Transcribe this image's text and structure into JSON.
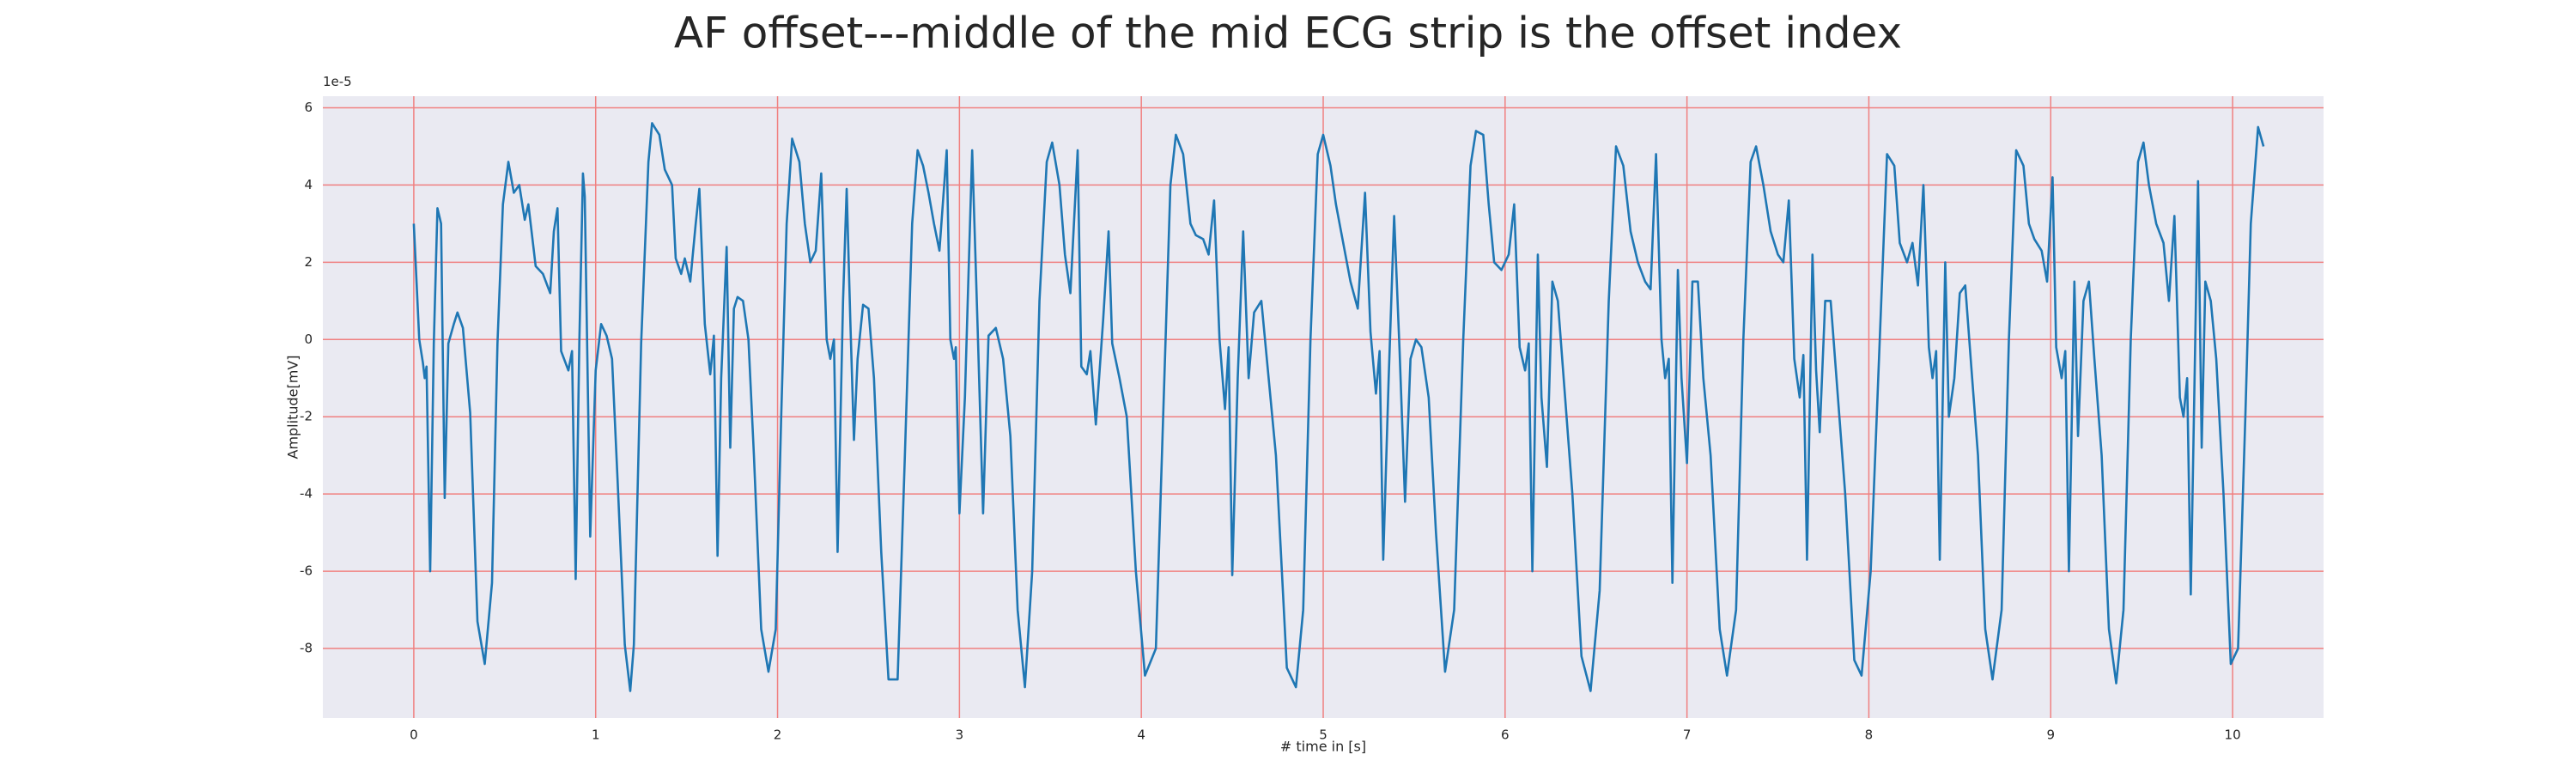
{
  "chart_data": {
    "type": "line",
    "title": "AF offset---middle of the mid ECG strip is the offset index",
    "xlabel": "# time in [s]",
    "ylabel": "Amplitude[mV]",
    "y_offset_text": "1e-5",
    "color": "#1f77b4",
    "background": "#eaeaf2",
    "grid": true,
    "grid_color": "#f08080",
    "xlim": [
      -0.5,
      10.5
    ],
    "ylim": [
      -9.8,
      6.3
    ],
    "xticks": [
      0,
      1,
      2,
      3,
      4,
      5,
      6,
      7,
      8,
      9,
      10
    ],
    "yticks": [
      -8,
      -6,
      -4,
      -2,
      0,
      2,
      4,
      6
    ],
    "x": [
      0.0,
      0.03,
      0.05,
      0.06,
      0.07,
      0.09,
      0.11,
      0.13,
      0.15,
      0.17,
      0.19,
      0.22,
      0.24,
      0.27,
      0.31,
      0.35,
      0.39,
      0.43,
      0.46,
      0.49,
      0.52,
      0.55,
      0.58,
      0.61,
      0.63,
      0.67,
      0.71,
      0.75,
      0.77,
      0.79,
      0.81,
      0.85,
      0.87,
      0.89,
      0.91,
      0.93,
      0.94,
      0.97,
      1.0,
      1.03,
      1.06,
      1.09,
      1.12,
      1.16,
      1.19,
      1.21,
      1.25,
      1.29,
      1.31,
      1.35,
      1.38,
      1.42,
      1.44,
      1.47,
      1.49,
      1.52,
      1.55,
      1.57,
      1.6,
      1.63,
      1.65,
      1.67,
      1.69,
      1.72,
      1.74,
      1.76,
      1.78,
      1.81,
      1.84,
      1.87,
      1.91,
      1.95,
      1.99,
      2.02,
      2.05,
      2.08,
      2.12,
      2.15,
      2.18,
      2.21,
      2.24,
      2.27,
      2.29,
      2.31,
      2.33,
      2.36,
      2.38,
      2.4,
      2.42,
      2.44,
      2.47,
      2.5,
      2.53,
      2.57,
      2.61,
      2.66,
      2.7,
      2.74,
      2.77,
      2.8,
      2.83,
      2.86,
      2.89,
      2.93,
      2.95,
      2.97,
      2.98,
      3.0,
      3.03,
      3.07,
      3.1,
      3.13,
      3.16,
      3.2,
      3.24,
      3.28,
      3.32,
      3.36,
      3.4,
      3.44,
      3.48,
      3.51,
      3.55,
      3.58,
      3.61,
      3.65,
      3.67,
      3.7,
      3.72,
      3.75,
      3.79,
      3.82,
      3.84,
      3.88,
      3.92,
      3.97,
      4.02,
      4.08,
      4.12,
      4.16,
      4.19,
      4.23,
      4.27,
      4.3,
      4.34,
      4.37,
      4.4,
      4.43,
      4.46,
      4.48,
      4.5,
      4.53,
      4.56,
      4.59,
      4.62,
      4.66,
      4.7,
      4.74,
      4.8,
      4.85,
      4.89,
      4.93,
      4.97,
      5.0,
      5.04,
      5.07,
      5.11,
      5.15,
      5.19,
      5.23,
      5.26,
      5.29,
      5.31,
      5.33,
      5.36,
      5.39,
      5.42,
      5.45,
      5.48,
      5.51,
      5.54,
      5.58,
      5.62,
      5.67,
      5.72,
      5.77,
      5.81,
      5.84,
      5.88,
      5.91,
      5.94,
      5.98,
      6.02,
      6.05,
      6.08,
      6.11,
      6.13,
      6.15,
      6.18,
      6.2,
      6.23,
      6.26,
      6.29,
      6.33,
      6.37,
      6.42,
      6.47,
      6.52,
      6.57,
      6.61,
      6.65,
      6.69,
      6.73,
      6.77,
      6.8,
      6.83,
      6.86,
      6.88,
      6.9,
      6.92,
      6.95,
      6.97,
      7.0,
      7.03,
      7.06,
      7.09,
      7.13,
      7.18,
      7.22,
      7.27,
      7.31,
      7.35,
      7.38,
      7.42,
      7.46,
      7.5,
      7.53,
      7.56,
      7.59,
      7.62,
      7.64,
      7.66,
      7.69,
      7.71,
      7.73,
      7.76,
      7.79,
      7.83,
      7.87,
      7.92,
      7.96,
      8.01,
      8.06,
      8.1,
      8.14,
      8.17,
      8.21,
      8.24,
      8.27,
      8.3,
      8.33,
      8.35,
      8.37,
      8.39,
      8.42,
      8.44,
      8.47,
      8.5,
      8.53,
      8.56,
      8.6,
      8.64,
      8.68,
      8.73,
      8.77,
      8.81,
      8.85,
      8.88,
      8.91,
      8.95,
      8.98,
      9.01,
      9.03,
      9.06,
      9.08,
      9.1,
      9.13,
      9.15,
      9.18,
      9.21,
      9.24,
      9.28,
      9.32,
      9.36,
      9.4,
      9.44,
      9.48,
      9.51,
      9.54,
      9.58,
      9.62,
      9.65,
      9.68,
      9.71,
      9.73,
      9.75,
      9.77,
      9.81,
      9.83,
      9.85,
      9.88,
      9.91,
      9.95,
      9.99,
      10.03,
      10.07,
      10.1,
      10.14,
      10.17
    ],
    "values": [
      3.0,
      0.0,
      -0.6,
      -1.0,
      -0.7,
      -6.0,
      -0.1,
      3.4,
      3.0,
      -4.1,
      -0.1,
      0.4,
      0.7,
      0.3,
      -1.9,
      -7.3,
      -8.4,
      -6.3,
      -0.1,
      3.5,
      4.6,
      3.8,
      4.0,
      3.1,
      3.5,
      1.9,
      1.7,
      1.2,
      2.8,
      3.4,
      -0.3,
      -0.8,
      -0.3,
      -6.2,
      -0.1,
      4.3,
      3.7,
      -5.1,
      -0.8,
      0.4,
      0.1,
      -0.5,
      -3.6,
      -7.9,
      -9.1,
      -7.9,
      -0.1,
      4.6,
      5.6,
      5.3,
      4.4,
      4.0,
      2.1,
      1.7,
      2.1,
      1.5,
      3.0,
      3.9,
      0.4,
      -0.9,
      0.1,
      -5.6,
      -1.0,
      2.4,
      -2.8,
      0.8,
      1.1,
      1.0,
      0.0,
      -3.0,
      -7.5,
      -8.6,
      -7.5,
      -2.0,
      3.0,
      5.2,
      4.6,
      3.0,
      2.0,
      2.3,
      4.3,
      0.0,
      -0.5,
      0.0,
      -5.5,
      1.0,
      3.9,
      0.5,
      -2.6,
      -0.5,
      0.9,
      0.8,
      -1.0,
      -5.5,
      -8.8,
      -8.8,
      -3.0,
      3.0,
      4.9,
      4.5,
      3.8,
      3.0,
      2.3,
      4.9,
      0.0,
      -0.5,
      -0.2,
      -4.5,
      -1.5,
      4.9,
      0.3,
      -4.5,
      0.1,
      0.3,
      -0.5,
      -2.5,
      -7.0,
      -9.0,
      -6.0,
      1.0,
      4.6,
      5.1,
      4.0,
      2.2,
      1.2,
      4.9,
      -0.7,
      -0.9,
      -0.3,
      -2.2,
      0.5,
      2.8,
      -0.1,
      -1.0,
      -2.0,
      -6.0,
      -8.7,
      -8.0,
      -2.0,
      4.0,
      5.3,
      4.8,
      3.0,
      2.7,
      2.6,
      2.2,
      3.6,
      0.0,
      -1.8,
      -0.2,
      -6.1,
      -1.0,
      2.8,
      -1.0,
      0.7,
      1.0,
      -1.0,
      -3.0,
      -8.5,
      -9.0,
      -7.0,
      0.0,
      4.8,
      5.3,
      4.5,
      3.5,
      2.5,
      1.5,
      0.8,
      3.8,
      0.2,
      -1.4,
      -0.3,
      -5.7,
      -1.0,
      3.2,
      -0.3,
      -4.2,
      -0.5,
      0.0,
      -0.2,
      -1.5,
      -5.0,
      -8.6,
      -7.0,
      0.0,
      4.5,
      5.4,
      5.3,
      3.5,
      2.0,
      1.8,
      2.2,
      3.5,
      -0.2,
      -0.8,
      -0.1,
      -6.0,
      2.2,
      -1.5,
      -3.3,
      1.5,
      1.0,
      -1.5,
      -4.0,
      -8.2,
      -9.1,
      -6.5,
      1.0,
      5.0,
      4.5,
      2.8,
      2.0,
      1.5,
      1.3,
      4.8,
      0.0,
      -1.0,
      -0.5,
      -6.3,
      1.8,
      -1.0,
      -3.2,
      1.5,
      1.5,
      -1.0,
      -3.0,
      -7.5,
      -8.7,
      -7.0,
      0.0,
      4.6,
      5.0,
      4.0,
      2.8,
      2.2,
      2.0,
      3.6,
      -0.5,
      -1.5,
      -0.4,
      -5.7,
      2.2,
      -0.8,
      -2.4,
      1.0,
      1.0,
      -1.5,
      -4.0,
      -8.3,
      -8.7,
      -6.0,
      0.0,
      4.8,
      4.5,
      2.5,
      2.0,
      2.5,
      1.4,
      4.0,
      -0.2,
      -1.0,
      -0.3,
      -5.7,
      2.0,
      -2.0,
      -1.0,
      1.2,
      1.4,
      -0.5,
      -3.0,
      -7.5,
      -8.8,
      -7.0,
      0.0,
      4.9,
      4.5,
      3.0,
      2.6,
      2.3,
      1.5,
      4.2,
      -0.2,
      -1.0,
      -0.3,
      -6.0,
      1.5,
      -2.5,
      1.0,
      1.5,
      -0.5,
      -3.0,
      -7.5,
      -8.9,
      -7.0,
      0.0,
      4.6,
      5.1,
      4.0,
      3.0,
      2.5,
      1.0,
      3.2,
      -1.5,
      -2.0,
      -1.0,
      -6.6,
      4.1,
      -2.8,
      1.5,
      1.0,
      -0.5,
      -4.0,
      -8.4,
      -8.0,
      -2.0,
      3.0,
      5.5,
      5.0
    ]
  }
}
